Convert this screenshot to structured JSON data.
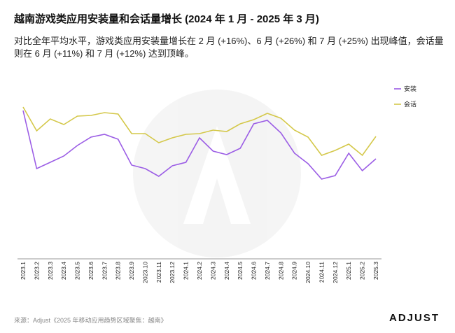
{
  "chart_data": {
    "type": "line",
    "title": "越南游戏类应用安装量和会话量增长 (2024 年 1 月 - 2025 年 3 月)",
    "subtitle": "对比全年平均水平，游戏类应用安装量增长在 2 月 (+16%)、6 月 (+26%) 和 7 月 (+25%) 出现峰值，会话量则在 6 月 (+11%) 和 7 月 (+12%) 达到顶峰。",
    "categories": [
      "2023.1",
      "2023.2",
      "2023.3",
      "2023.4",
      "2023.5",
      "2023.6",
      "2023.7",
      "2023.8",
      "2023.9",
      "2023.10",
      "2023.11",
      "2023.12",
      "2024.1",
      "2024.2",
      "2024.3",
      "2024.4",
      "2024.5",
      "2024.6",
      "2024.7",
      "2024.8",
      "2024.9",
      "2024.10",
      "2024.11",
      "2024.12",
      "2025.1",
      "2025.2",
      "2025.3"
    ],
    "series": [
      {
        "name": "安装",
        "color": "#9b5de5",
        "values": [
          84.8,
          51.6,
          55.2,
          58.8,
          64.8,
          69.6,
          71.2,
          68.4,
          53.6,
          51.6,
          47.2,
          53.2,
          55.2,
          69.2,
          61.6,
          59.6,
          63.2,
          77.2,
          79.2,
          72,
          60.4,
          54.4,
          45.6,
          47.6,
          60.4,
          50.4,
          57.2
        ]
      },
      {
        "name": "会话",
        "color": "#d4c84a",
        "values": [
          86.8,
          73.2,
          80,
          76.8,
          81.6,
          82,
          83.6,
          82.8,
          71.6,
          71.6,
          66.4,
          69.2,
          71.2,
          71.6,
          73.6,
          72.8,
          77.2,
          79.6,
          83.2,
          80.4,
          73.6,
          69.6,
          59.2,
          62,
          65.6,
          59.2,
          70
        ]
      }
    ],
    "ylim": [
      0,
      100
    ],
    "legend": "right"
  },
  "source": "来源：Adjust《2025 年移动应用趋势区域聚焦：越南》",
  "logo": "ADJUST"
}
